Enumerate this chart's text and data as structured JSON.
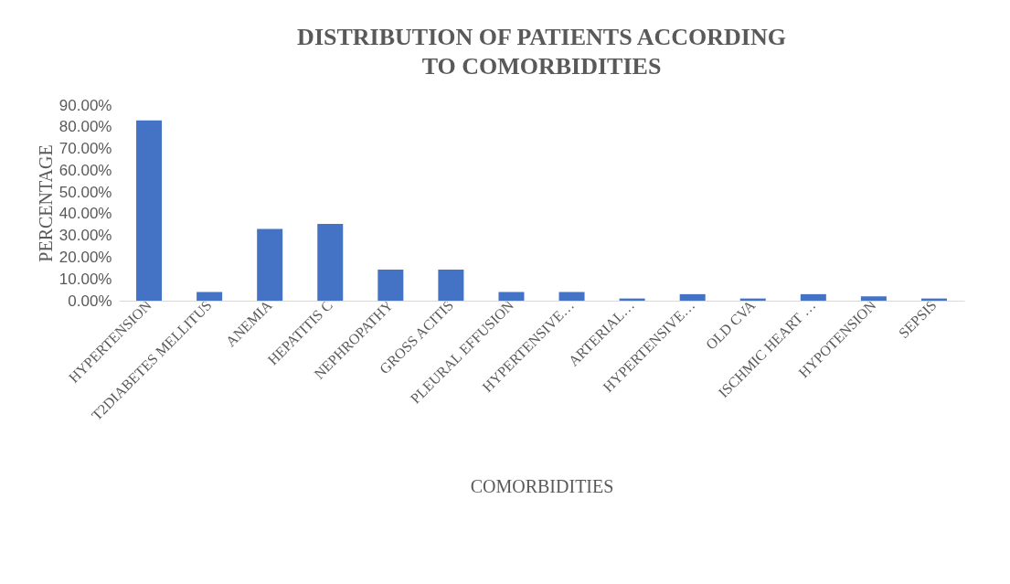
{
  "chart_data": {
    "type": "bar",
    "title": "DISTRIBUTION OF PATIENTS ACCORDING TO COMORBIDITIES",
    "xlabel": "COMORBIDITIES",
    "ylabel": "PERCENTAGE",
    "categories": [
      "HYPERTENSION",
      "T2DIABETES MELLITUS",
      "ANEMIA",
      "HEPATITIS C",
      "NEPHROPATHY",
      "GROSS ACITIS",
      "PLEURAL EFFUSION",
      "HYPERTENSIVE…",
      "ARTERIAL…",
      "HYPERTENSIVE…",
      "OLD CVA",
      "ISCHMIC HEART …",
      "HYPOTENSION",
      "SEPSIS"
    ],
    "values": [
      83,
      4,
      33,
      35.3,
      14.3,
      14.3,
      4,
      4,
      1,
      3,
      1,
      3,
      2,
      1
    ],
    "color": "#4472c4",
    "ylim": [
      0,
      90
    ],
    "yticks": [
      {
        "value": 0,
        "label": "0.00%"
      },
      {
        "value": 10,
        "label": "10.00%"
      },
      {
        "value": 20,
        "label": "20.00%"
      },
      {
        "value": 30,
        "label": "30.00%"
      },
      {
        "value": 40,
        "label": "40.00%"
      },
      {
        "value": 50,
        "label": "50.00%"
      },
      {
        "value": 60,
        "label": "60.00%"
      },
      {
        "value": 70,
        "label": "70.00%"
      },
      {
        "value": 80,
        "label": "80.00%"
      },
      {
        "value": 90,
        "label": "90.00%"
      }
    ],
    "grid": false,
    "legend": false
  }
}
